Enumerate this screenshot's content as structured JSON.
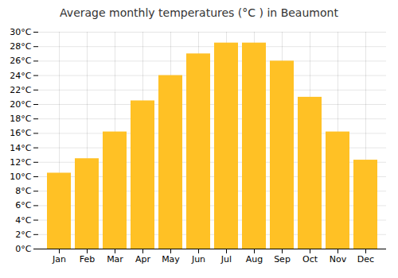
{
  "chart_data": {
    "type": "bar",
    "title": "Average monthly temperatures (°C ) in Beaumont",
    "categories": [
      "Jan",
      "Feb",
      "Mar",
      "Apr",
      "May",
      "Jun",
      "Jul",
      "Aug",
      "Sep",
      "Oct",
      "Nov",
      "Dec"
    ],
    "values": [
      10.5,
      12.5,
      16.2,
      20.5,
      24.0,
      27.0,
      28.5,
      28.5,
      26.0,
      21.0,
      16.2,
      12.3
    ],
    "color": "#FFC125",
    "ylim": [
      0,
      30
    ],
    "yticks": [
      {
        "value": 0,
        "label": "0°C"
      },
      {
        "value": 2,
        "label": "2°C"
      },
      {
        "value": 4,
        "label": "4°C"
      },
      {
        "value": 6,
        "label": "6°C"
      },
      {
        "value": 8,
        "label": "8°C"
      },
      {
        "value": 10,
        "label": "10°C"
      },
      {
        "value": 12,
        "label": "12°C"
      },
      {
        "value": 14,
        "label": "14°C"
      },
      {
        "value": 16,
        "label": "16°C"
      },
      {
        "value": 18,
        "label": "18°C"
      },
      {
        "value": 20,
        "label": "20°C"
      },
      {
        "value": 22,
        "label": "22°C"
      },
      {
        "value": 24,
        "label": "24°C"
      },
      {
        "value": 26,
        "label": "26°C"
      },
      {
        "value": 28,
        "label": "28°C"
      },
      {
        "value": 30,
        "label": "30°C"
      }
    ],
    "grid": true
  }
}
